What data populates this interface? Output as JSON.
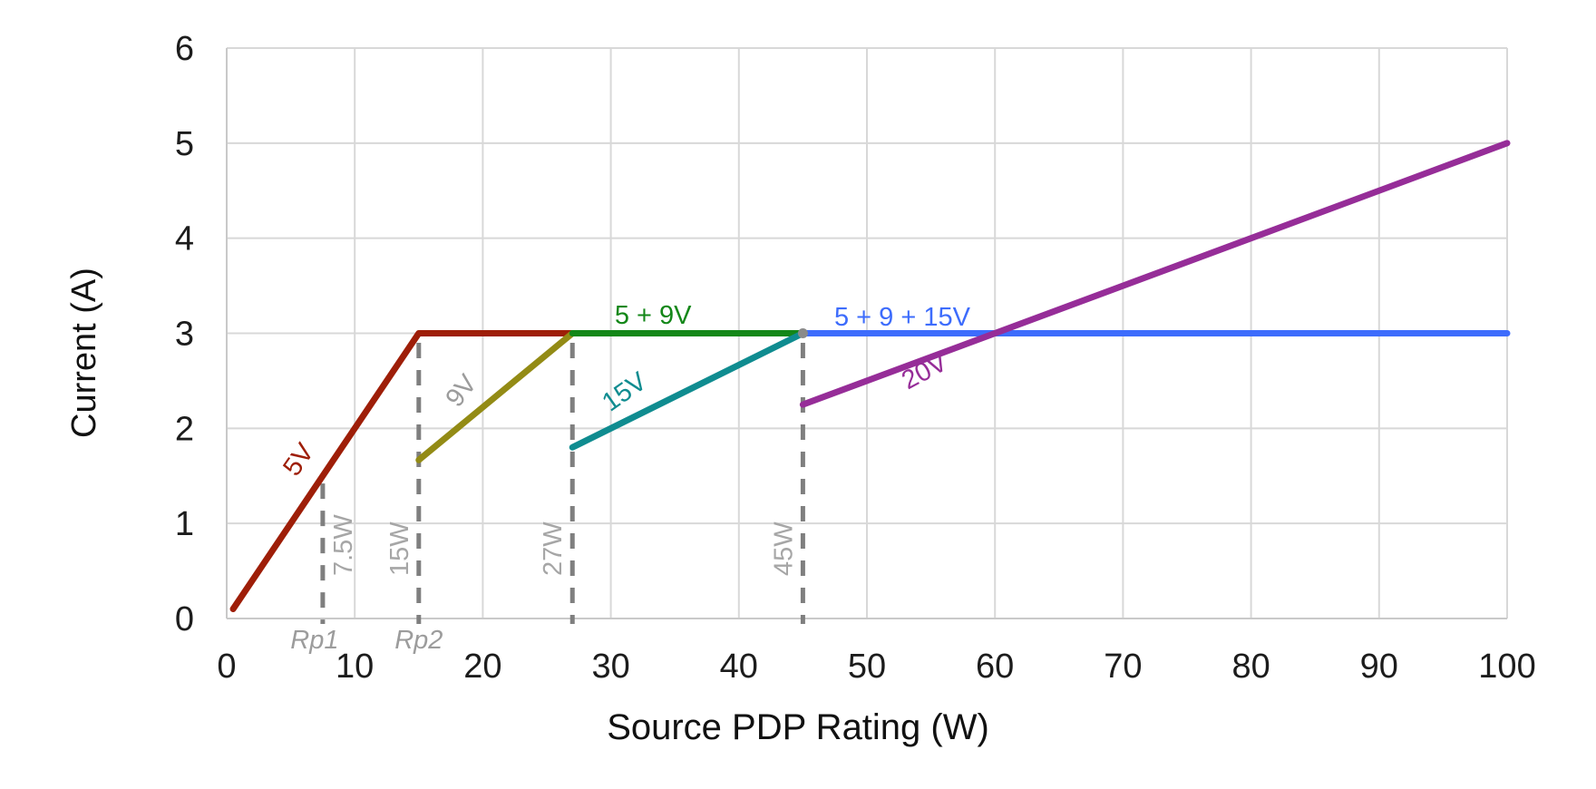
{
  "chart_data": {
    "type": "line",
    "title": "",
    "xlabel": "Source PDP Rating (W)",
    "ylabel": "Current (A)",
    "xlim": [
      0,
      100
    ],
    "ylim": [
      0,
      6
    ],
    "x_ticks": [
      0,
      10,
      20,
      30,
      40,
      50,
      60,
      70,
      80,
      90,
      100
    ],
    "y_ticks": [
      0,
      1,
      2,
      3,
      4,
      5,
      6
    ],
    "grid": true,
    "legend_position": "inline-labels",
    "series": [
      {
        "name": "5V",
        "color": "#9E1E08",
        "points": [
          [
            0.5,
            0.1
          ],
          [
            15,
            3
          ],
          [
            27,
            3
          ]
        ],
        "label": {
          "text": "5V",
          "x": 6.16,
          "y": 1.62,
          "angle": -55,
          "color": "#9E1E08"
        }
      },
      {
        "name": "9V",
        "color": "#938B15",
        "points": [
          [
            15,
            1.667
          ],
          [
            27,
            3
          ]
        ],
        "label": {
          "text": "9V",
          "x": 18.84,
          "y": 2.34,
          "angle": -52,
          "color": "#9C9C9C"
        }
      },
      {
        "name": "5 + 9V",
        "color": "#138718",
        "points": [
          [
            27,
            3
          ],
          [
            45,
            3
          ]
        ],
        "label": {
          "text": "5 + 9V",
          "x": 33.3,
          "y": 3.1,
          "angle": 0,
          "color": "#138718"
        }
      },
      {
        "name": "15V",
        "color": "#0F8C90",
        "points": [
          [
            27,
            1.8
          ],
          [
            45,
            3
          ]
        ],
        "label": {
          "text": "15V",
          "x": 31.44,
          "y": 2.31,
          "angle": -35,
          "color": "#0F8C90"
        }
      },
      {
        "name": "5 + 9 + 15V",
        "color": "#3D6CFC",
        "points": [
          [
            45,
            3
          ],
          [
            100,
            3
          ]
        ],
        "label": {
          "text": "5 + 9 + 15V",
          "x": 52.76,
          "y": 3.08,
          "angle": 0,
          "color": "#3D6CFC"
        }
      },
      {
        "name": "20V",
        "color": "#962D98",
        "points": [
          [
            45,
            2.25
          ],
          [
            100,
            5
          ]
        ],
        "label": {
          "text": "20V",
          "x": 54.8,
          "y": 2.52,
          "angle": -28,
          "color": "#962D98"
        }
      }
    ],
    "power_markers": [
      {
        "power": 7.5,
        "watt_label": "7.5W",
        "rp_label": "Rp1",
        "rp_dx": -9,
        "top_current": 1.42,
        "label_side": "right"
      },
      {
        "power": 15,
        "watt_label": "15W",
        "rp_label": "Rp2",
        "rp_dx": 0,
        "top_current": 2.9,
        "label_side": "left"
      },
      {
        "power": 27,
        "watt_label": "27W",
        "rp_label": null,
        "rp_dx": 0,
        "top_current": 2.9,
        "label_side": "left"
      },
      {
        "power": 45,
        "watt_label": "45W",
        "rp_label": null,
        "rp_dx": 0,
        "top_current": 2.9,
        "label_side": "left"
      }
    ],
    "junction_dot": {
      "x": 45,
      "y": 3,
      "color": "#8A8A8A"
    },
    "colors": {
      "grid": "#D8D8D8",
      "axis": "#C9C9C9",
      "dash": "#7F7F7F",
      "marker_label": "#A6A6A6",
      "rp_label": "#9C9C9C",
      "tick_text": "#1C1C1C"
    }
  }
}
